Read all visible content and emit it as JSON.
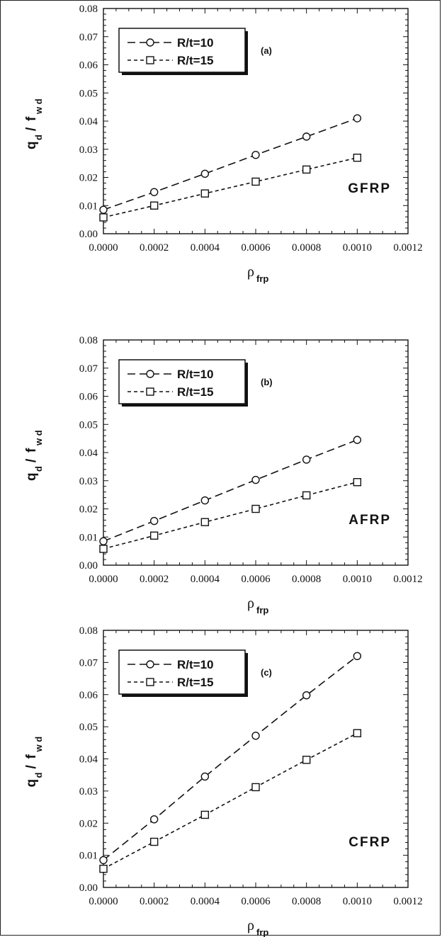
{
  "chart_data": [
    {
      "type": "line",
      "panel_label": "(a)",
      "material": "GFRP",
      "xlabel": "ρ",
      "xlabel_sub": "frp",
      "ylabel": "q",
      "ylabel_sub": "d",
      "ylabel_div": "/",
      "ylabel_f": "f",
      "ylabel_f_sub": "w d",
      "xlim": [
        0,
        0.0012
      ],
      "ylim": [
        0,
        0.08
      ],
      "xticks": [
        "0.0000",
        "0.0002",
        "0.0004",
        "0.0006",
        "0.0008",
        "0.0010",
        "0.0012"
      ],
      "yticks": [
        "0.00",
        "0.01",
        "0.02",
        "0.03",
        "0.04",
        "0.05",
        "0.06",
        "0.07",
        "0.08"
      ],
      "grid": false,
      "legend_position": "top-left",
      "x": [
        0,
        0.0002,
        0.0004,
        0.0006,
        0.0008,
        0.001
      ],
      "series": [
        {
          "name": "R/t=10",
          "marker": "circle",
          "dash": "long",
          "values": [
            0.0085,
            0.0148,
            0.0213,
            0.028,
            0.0345,
            0.041
          ]
        },
        {
          "name": "R/t=15",
          "marker": "square",
          "dash": "short",
          "values": [
            0.0058,
            0.01,
            0.0143,
            0.0185,
            0.0228,
            0.027
          ]
        }
      ]
    },
    {
      "type": "line",
      "panel_label": "(b)",
      "material": "AFRP",
      "xlabel": "ρ",
      "xlabel_sub": "frp",
      "ylabel": "q",
      "ylabel_sub": "d",
      "ylabel_div": "/",
      "ylabel_f": "f",
      "ylabel_f_sub": "w d",
      "xlim": [
        0,
        0.0012
      ],
      "ylim": [
        0,
        0.08
      ],
      "xticks": [
        "0.0000",
        "0.0002",
        "0.0004",
        "0.0006",
        "0.0008",
        "0.0010",
        "0.0012"
      ],
      "yticks": [
        "0.00",
        "0.01",
        "0.02",
        "0.03",
        "0.04",
        "0.05",
        "0.06",
        "0.07",
        "0.08"
      ],
      "grid": false,
      "legend_position": "top-left",
      "x": [
        0,
        0.0002,
        0.0004,
        0.0006,
        0.0008,
        0.001
      ],
      "series": [
        {
          "name": "R/t=10",
          "marker": "circle",
          "dash": "long",
          "values": [
            0.0085,
            0.0157,
            0.023,
            0.0303,
            0.0375,
            0.0445
          ]
        },
        {
          "name": "R/t=15",
          "marker": "square",
          "dash": "short",
          "values": [
            0.0058,
            0.0105,
            0.0153,
            0.02,
            0.0248,
            0.0295
          ]
        }
      ]
    },
    {
      "type": "line",
      "panel_label": "(c)",
      "material": "CFRP",
      "xlabel": "ρ",
      "xlabel_sub": "frp",
      "ylabel": "q",
      "ylabel_sub": "d",
      "ylabel_div": "/",
      "ylabel_f": "f",
      "ylabel_f_sub": "w d",
      "xlim": [
        0,
        0.0012
      ],
      "ylim": [
        0,
        0.08
      ],
      "xticks": [
        "0.0000",
        "0.0002",
        "0.0004",
        "0.0006",
        "0.0008",
        "0.0010",
        "0.0012"
      ],
      "yticks": [
        "0.00",
        "0.01",
        "0.02",
        "0.03",
        "0.04",
        "0.05",
        "0.06",
        "0.07",
        "0.08"
      ],
      "grid": false,
      "legend_position": "top-left",
      "x": [
        0,
        0.0002,
        0.0004,
        0.0006,
        0.0008,
        0.001
      ],
      "series": [
        {
          "name": "R/t=10",
          "marker": "circle",
          "dash": "long",
          "values": [
            0.0085,
            0.0212,
            0.0345,
            0.0472,
            0.0598,
            0.072
          ]
        },
        {
          "name": "R/t=15",
          "marker": "square",
          "dash": "short",
          "values": [
            0.0058,
            0.0142,
            0.0226,
            0.0312,
            0.0397,
            0.048
          ]
        }
      ]
    }
  ]
}
